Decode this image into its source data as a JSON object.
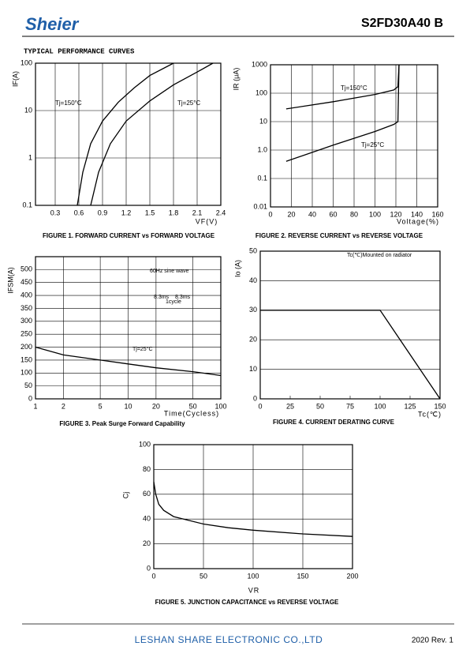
{
  "header": {
    "logo": "Sheier",
    "part": "S2FD30A40 B"
  },
  "section_title": "TYPICAL PERFORMANCE CURVES",
  "chart_data": [
    {
      "type": "line",
      "title": "FIGURE 1. FORWARD CURRENT vs FORWARD VOLTAGE",
      "xlabel": "VF(V)",
      "ylabel": "IF(A)",
      "xlim": [
        0.05,
        2.4
      ],
      "ylim": [
        0.1,
        100
      ],
      "ylog": true,
      "grid": "both",
      "xticks": [
        0.3,
        0.6,
        0.9,
        1.2,
        1.5,
        1.8,
        2.1,
        2.4
      ],
      "yticks": [
        0.1,
        1,
        10,
        100
      ],
      "series": [
        {
          "name": "Tj=150°C",
          "color": "#000000",
          "x": [
            0.58,
            0.65,
            0.75,
            0.9,
            1.1,
            1.3,
            1.5,
            1.8
          ],
          "values": [
            0.1,
            0.5,
            2,
            6,
            15,
            30,
            55,
            100
          ]
        },
        {
          "name": "Tj=25°C",
          "color": "#000000",
          "x": [
            0.75,
            0.85,
            1.0,
            1.2,
            1.5,
            1.8,
            2.1,
            2.3
          ],
          "values": [
            0.1,
            0.5,
            2,
            6,
            16,
            35,
            65,
            100
          ]
        }
      ]
    },
    {
      "type": "line",
      "title": "FIGURE 2. REVERSE CURRENT vs REVERSE VOLTAGE",
      "xlabel": "Voltage(%)",
      "ylabel": "IR (μA)",
      "xlim": [
        0,
        160
      ],
      "ylim": [
        0.01,
        1000
      ],
      "ylog": true,
      "grid": "both",
      "xticks": [
        0,
        20,
        40,
        60,
        80,
        100,
        120,
        140,
        160
      ],
      "yticks": [
        0.01,
        0.1,
        {
          "value": 1,
          "label": "1.0"
        },
        10,
        100,
        1000
      ],
      "series": [
        {
          "name": "Tj=150°C",
          "color": "#000000",
          "x": [
            15,
            60,
            100,
            118,
            122,
            123
          ],
          "values": [
            28,
            50,
            90,
            130,
            170,
            1000
          ]
        },
        {
          "name": "Tj=25°C",
          "color": "#000000",
          "x": [
            15,
            60,
            100,
            118,
            122,
            123
          ],
          "values": [
            0.4,
            1.5,
            4.5,
            8,
            10,
            1000
          ]
        }
      ]
    },
    {
      "type": "line",
      "title": "FIGURE 3. Peak Surge Forward Capability",
      "xlabel": "Time(Cycless)",
      "ylabel": "IFSM(A)",
      "xlim": [
        1,
        100
      ],
      "xlog": true,
      "ylim": [
        0,
        550
      ],
      "grid": "both",
      "xticks": [
        1,
        2,
        5,
        10,
        20,
        50,
        100
      ],
      "yticks": [
        0,
        50,
        100,
        150,
        200,
        250,
        300,
        350,
        400,
        450,
        500
      ],
      "annotations": [
        "Tj=25°C",
        "60Hz sine wave",
        "8.3ms",
        "8.3ms",
        "1cycle"
      ],
      "series": [
        {
          "color": "#000000",
          "x": [
            1,
            2,
            5,
            10,
            20,
            50,
            100
          ],
          "values": [
            200,
            170,
            150,
            135,
            120,
            105,
            90
          ]
        }
      ]
    },
    {
      "type": "line",
      "title": "FIGURE 4. CURRENT DERATING CURVE",
      "xlabel": "Tc(℃)",
      "ylabel": "Io (A)",
      "xlim": [
        0,
        150
      ],
      "ylim": [
        0,
        50
      ],
      "grid": "y",
      "xticks": [
        0,
        25,
        50,
        75,
        100,
        125,
        150
      ],
      "yticks": [
        0,
        10,
        20,
        30,
        40,
        50
      ],
      "annotations": [
        "Tc(℃)Mounted on radiator"
      ],
      "series": [
        {
          "color": "#000000",
          "x": [
            0,
            100,
            150
          ],
          "values": [
            30,
            30,
            0
          ]
        }
      ]
    },
    {
      "type": "line",
      "title": "FIGURE 5. JUNCTION CAPACITANCE vs REVERSE VOLTAGE",
      "xlabel": "VR",
      "ylabel": "Cj",
      "xlim": [
        0,
        200
      ],
      "ylim": [
        0,
        100
      ],
      "grid": "both",
      "xticks": [
        0,
        50,
        100,
        150,
        200
      ],
      "yticks": [
        0,
        20,
        40,
        60,
        80,
        100
      ],
      "series": [
        {
          "color": "#000000",
          "x": [
            0,
            2,
            5,
            10,
            20,
            30,
            50,
            75,
            100,
            150,
            200
          ],
          "values": [
            70,
            60,
            52,
            47,
            42,
            40,
            36,
            33,
            31,
            28,
            26
          ]
        }
      ]
    }
  ],
  "footer": {
    "company": "LESHAN SHARE ELECTRONIC CO.,LTD",
    "revision": "2020  Rev. 1"
  }
}
